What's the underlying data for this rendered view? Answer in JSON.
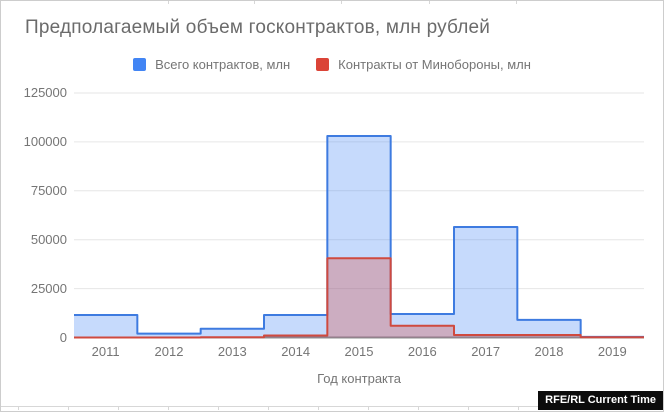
{
  "chart_data": {
    "type": "area",
    "stepped": true,
    "title": "Предполагаемый объем госконтрактов, млн рублей",
    "xlabel": "Год контракта",
    "categories": [
      "2011",
      "2012",
      "2013",
      "2014",
      "2015",
      "2016",
      "2017",
      "2018",
      "2019"
    ],
    "series": [
      {
        "name": "Всего контрактов, млн",
        "swatch_color": "#4285f4",
        "stroke_color": "#3e7be0",
        "fill_color": "rgba(66,133,244,0.30)",
        "values": [
          11500,
          2000,
          4500,
          11500,
          103000,
          12000,
          56500,
          9000,
          300
        ]
      },
      {
        "name": "Контракты от Минобороны, млн",
        "swatch_color": "#db4437",
        "stroke_color": "#cf4a3f",
        "fill_color": "rgba(219,68,55,0.30)",
        "values": [
          0,
          0,
          100,
          1000,
          40500,
          6000,
          1300,
          1300,
          100
        ]
      }
    ],
    "y_ticks": [
      0,
      25000,
      50000,
      75000,
      100000,
      125000
    ],
    "ylim": [
      0,
      125000
    ],
    "grid": true,
    "legend_position": "top"
  },
  "footer": {
    "badge": "RFE/RL Current Time"
  }
}
